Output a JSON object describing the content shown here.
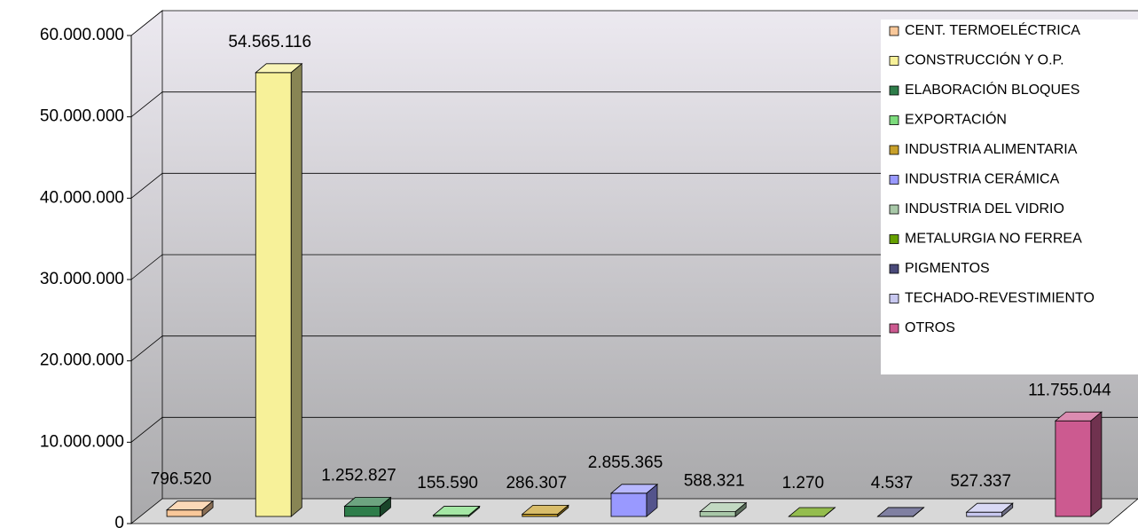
{
  "chart_data": {
    "type": "bar3d",
    "categories": [
      "CENT. TERMOELÉCTRICA",
      "CONSTRUCCIÓN Y O.P.",
      "ELABORACIÓN BLOQUES",
      "EXPORTACIÓN",
      "INDUSTRIA ALIMENTARIA",
      "INDUSTRIA CERÁMICA",
      "INDUSTRIA DEL VIDRIO",
      "METALURGIA NO FERREA",
      "PIGMENTOS",
      "TECHADO-REVESTIMIENTO",
      "OTROS"
    ],
    "values": [
      796520,
      54565116,
      1252827,
      155590,
      286307,
      2855365,
      588321,
      1270,
      4537,
      527337,
      11755044
    ],
    "value_labels": [
      "796.520",
      "54.565.116",
      "1.252.827",
      "155.590",
      "286.307",
      "2.855.365",
      "588.321",
      "1.270",
      "4.537",
      "527.337",
      "11.755.044"
    ],
    "colors": [
      "#f9c89a",
      "#f7f199",
      "#2e7d4a",
      "#7ddc7d",
      "#c8a02a",
      "#9999ff",
      "#a8c8a8",
      "#66a000",
      "#4a4a7a",
      "#c8c8f0",
      "#cc5a90"
    ],
    "ylim": [
      0,
      60000000
    ],
    "yticks": [
      0,
      {
        "value": 10000000,
        "label": "10.000.000"
      },
      {
        "value": 20000000,
        "label": "20.000.000"
      },
      {
        "value": 30000000,
        "label": "30.000.000"
      },
      {
        "value": 40000000,
        "label": "40.000.000"
      },
      {
        "value": 50000000,
        "label": "50.000.000"
      },
      {
        "value": 60000000,
        "label": "60.000.000"
      }
    ],
    "grid": true,
    "legend": "right"
  }
}
